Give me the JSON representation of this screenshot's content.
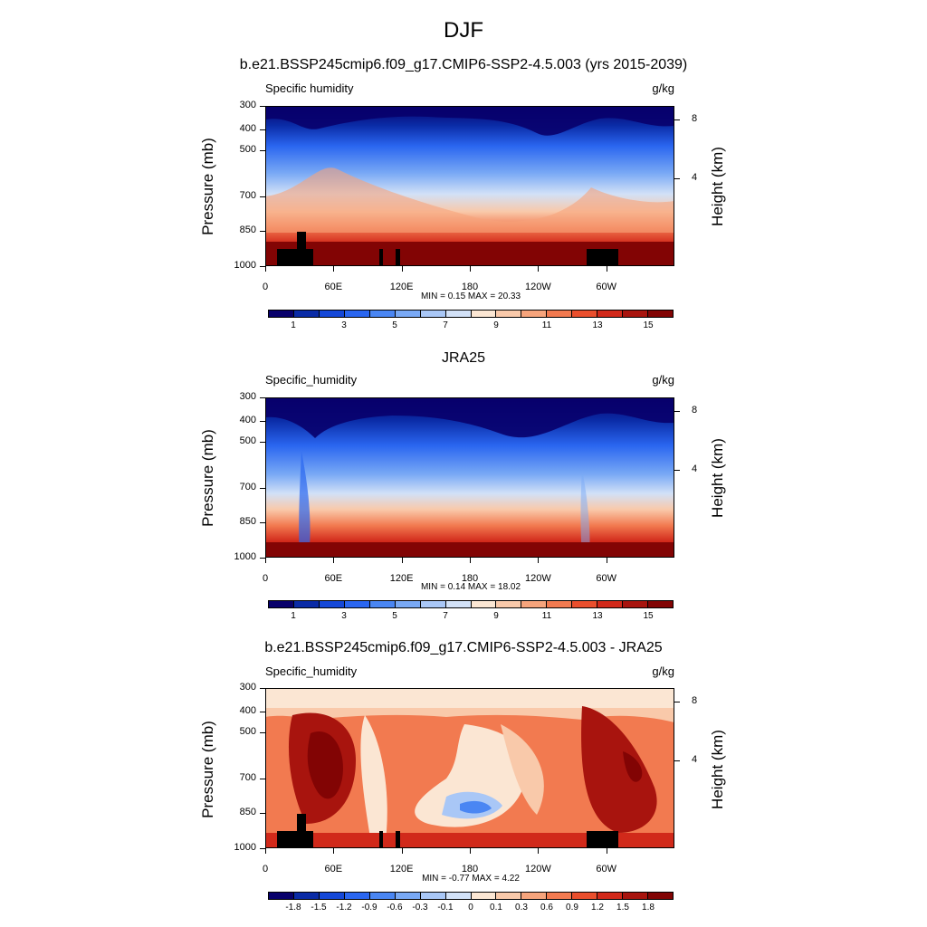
{
  "figure": {
    "title": "DJF",
    "left_label": "Specific humidity",
    "left_label_alt": "Specific_humidity",
    "unit": "g/kg",
    "ylabel": "Pressure (mb)",
    "ylabel_right": "Height (km)"
  },
  "colors": {
    "palette": [
      "#08006b",
      "#0a2ba6",
      "#1548d8",
      "#2a66f0",
      "#4a86f3",
      "#79a9f5",
      "#a9c7f6",
      "#d2e1f7",
      "#fbe6d3",
      "#f9c9aa",
      "#f6a47c",
      "#f27a50",
      "#ea4f2d",
      "#d1291a",
      "#a8140e",
      "#820404"
    ],
    "land": "#000000"
  },
  "chart_data": [
    {
      "type": "heatmap",
      "title": "b.e21.BSSP245cmip6.f09_g17.CMIP6-SSP2-4.5.003 (yrs 2015-2039)",
      "variable": "Specific humidity",
      "units": "g/kg",
      "xlabel": "",
      "ylabel": "Pressure (mb)",
      "ylabel_right": "Height (km)",
      "x_ticks": [
        "0",
        "60E",
        "120E",
        "180",
        "120W",
        "60W"
      ],
      "y_ticks": [
        "300",
        "400",
        "500",
        "700",
        "850",
        "1000"
      ],
      "y_ticks_right": [
        "8",
        "4"
      ],
      "ylim": [
        1000,
        300
      ],
      "min_max_text": "MIN =   0.15  MAX =  20.33",
      "min": 0.15,
      "max": 20.33,
      "colorbar_labels": [
        "1",
        "3",
        "5",
        "7",
        "9",
        "11",
        "13",
        "15"
      ],
      "colorbar_levels": [
        0,
        1,
        2,
        3,
        4,
        5,
        6,
        7,
        8,
        9,
        10,
        11,
        12,
        13,
        14,
        15
      ]
    },
    {
      "type": "heatmap",
      "title": "JRA25",
      "variable": "Specific_humidity",
      "units": "g/kg",
      "xlabel": "",
      "ylabel": "Pressure (mb)",
      "ylabel_right": "Height (km)",
      "x_ticks": [
        "0",
        "60E",
        "120E",
        "180",
        "120W",
        "60W"
      ],
      "y_ticks": [
        "300",
        "400",
        "500",
        "700",
        "850",
        "1000"
      ],
      "y_ticks_right": [
        "8",
        "4"
      ],
      "ylim": [
        1000,
        300
      ],
      "min_max_text": "MIN =   0.14  MAX =  18.02",
      "min": 0.14,
      "max": 18.02,
      "colorbar_labels": [
        "1",
        "3",
        "5",
        "7",
        "9",
        "11",
        "13",
        "15"
      ],
      "colorbar_levels": [
        0,
        1,
        2,
        3,
        4,
        5,
        6,
        7,
        8,
        9,
        10,
        11,
        12,
        13,
        14,
        15
      ]
    },
    {
      "type": "heatmap",
      "title": "b.e21.BSSP245cmip6.f09_g17.CMIP6-SSP2-4.5.003 - JRA25",
      "variable": "Specific_humidity",
      "units": "g/kg",
      "xlabel": "",
      "ylabel": "Pressure (mb)",
      "ylabel_right": "Height (km)",
      "x_ticks": [
        "0",
        "60E",
        "120E",
        "180",
        "120W",
        "60W"
      ],
      "y_ticks": [
        "300",
        "400",
        "500",
        "700",
        "850",
        "1000"
      ],
      "y_ticks_right": [
        "8",
        "4"
      ],
      "ylim": [
        1000,
        300
      ],
      "min_max_text": "MIN =  -0.77  MAX =   4.22",
      "min": -0.77,
      "max": 4.22,
      "colorbar_labels": [
        "-1.8",
        "-1.5",
        "-1.2",
        "-0.9",
        "-0.6",
        "-0.3",
        "-0.1",
        "0",
        "0.1",
        "0.3",
        "0.6",
        "0.9",
        "1.2",
        "1.5",
        "1.8"
      ],
      "colorbar_levels": [
        -1.8,
        -1.5,
        -1.2,
        -0.9,
        -0.6,
        -0.3,
        -0.1,
        0,
        0.1,
        0.3,
        0.6,
        0.9,
        1.2,
        1.5,
        1.8
      ]
    }
  ]
}
